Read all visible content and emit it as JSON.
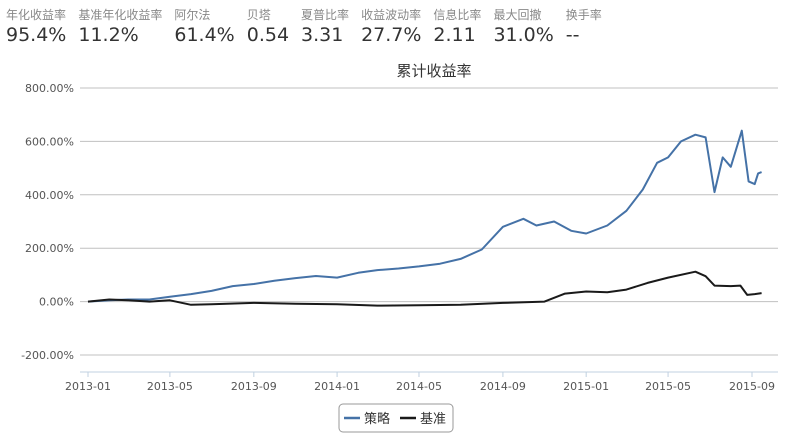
{
  "stats": [
    {
      "label": "年化收益率",
      "value": "95.4%"
    },
    {
      "label": "基准年化收益率",
      "value": "11.2%"
    },
    {
      "label": "阿尔法",
      "value": "61.4%"
    },
    {
      "label": "贝塔",
      "value": "0.54"
    },
    {
      "label": "夏普比率",
      "value": "3.31"
    },
    {
      "label": "收益波动率",
      "value": "27.7%"
    },
    {
      "label": "信息比率",
      "value": "2.11"
    },
    {
      "label": "最大回撤",
      "value": "31.0%"
    },
    {
      "label": "换手率",
      "value": "--"
    }
  ],
  "chart_data": {
    "type": "line",
    "title": "累计收益率",
    "ylim": [
      -200,
      800
    ],
    "yticks": [
      -200,
      0,
      200,
      400,
      600,
      800
    ],
    "ytick_labels": [
      "-200.00%",
      "0.00%",
      "200.00%",
      "400.00%",
      "600.00%",
      "800.00%"
    ],
    "xticks": [
      "2013-01",
      "2013-05",
      "2013-09",
      "2014-01",
      "2014-05",
      "2014-09",
      "2015-01",
      "2015-05",
      "2015-09"
    ],
    "grid": true,
    "legend": "bottom",
    "series": [
      {
        "name": "策略",
        "color": "#4572a7",
        "points": [
          [
            "2013-01-01",
            0
          ],
          [
            "2013-02-01",
            5
          ],
          [
            "2013-03-01",
            8
          ],
          [
            "2013-04-01",
            8
          ],
          [
            "2013-05-01",
            18
          ],
          [
            "2013-06-01",
            28
          ],
          [
            "2013-07-01",
            40
          ],
          [
            "2013-08-01",
            58
          ],
          [
            "2013-09-01",
            66
          ],
          [
            "2013-10-01",
            78
          ],
          [
            "2013-11-01",
            88
          ],
          [
            "2013-12-01",
            96
          ],
          [
            "2014-01-01",
            90
          ],
          [
            "2014-02-01",
            108
          ],
          [
            "2014-03-01",
            118
          ],
          [
            "2014-04-01",
            124
          ],
          [
            "2014-05-01",
            132
          ],
          [
            "2014-06-01",
            142
          ],
          [
            "2014-07-01",
            160
          ],
          [
            "2014-08-01",
            195
          ],
          [
            "2014-09-01",
            280
          ],
          [
            "2014-10-01",
            310
          ],
          [
            "2014-10-20",
            285
          ],
          [
            "2014-11-15",
            300
          ],
          [
            "2014-12-10",
            265
          ],
          [
            "2015-01-01",
            255
          ],
          [
            "2015-02-01",
            285
          ],
          [
            "2015-03-01",
            340
          ],
          [
            "2015-03-25",
            420
          ],
          [
            "2015-04-15",
            520
          ],
          [
            "2015-05-01",
            540
          ],
          [
            "2015-05-20",
            600
          ],
          [
            "2015-06-10",
            625
          ],
          [
            "2015-06-25",
            615
          ],
          [
            "2015-07-08",
            410
          ],
          [
            "2015-07-20",
            540
          ],
          [
            "2015-08-01",
            505
          ],
          [
            "2015-08-17",
            640
          ],
          [
            "2015-08-27",
            450
          ],
          [
            "2015-09-05",
            440
          ],
          [
            "2015-09-10",
            480
          ],
          [
            "2015-09-15",
            485
          ]
        ]
      },
      {
        "name": "基准",
        "color": "#1a1a1a",
        "points": [
          [
            "2013-01-01",
            0
          ],
          [
            "2013-02-01",
            8
          ],
          [
            "2013-03-01",
            5
          ],
          [
            "2013-04-01",
            0
          ],
          [
            "2013-05-01",
            5
          ],
          [
            "2013-06-01",
            -12
          ],
          [
            "2013-07-01",
            -10
          ],
          [
            "2013-09-01",
            -5
          ],
          [
            "2013-11-01",
            -8
          ],
          [
            "2014-01-01",
            -10
          ],
          [
            "2014-03-01",
            -15
          ],
          [
            "2014-05-01",
            -14
          ],
          [
            "2014-07-01",
            -12
          ],
          [
            "2014-09-01",
            -5
          ],
          [
            "2014-11-01",
            0
          ],
          [
            "2014-12-01",
            30
          ],
          [
            "2015-01-01",
            38
          ],
          [
            "2015-02-01",
            35
          ],
          [
            "2015-03-01",
            45
          ],
          [
            "2015-04-01",
            70
          ],
          [
            "2015-05-01",
            90
          ],
          [
            "2015-06-10",
            112
          ],
          [
            "2015-06-25",
            95
          ],
          [
            "2015-07-08",
            60
          ],
          [
            "2015-08-01",
            58
          ],
          [
            "2015-08-15",
            60
          ],
          [
            "2015-08-25",
            25
          ],
          [
            "2015-09-05",
            28
          ],
          [
            "2015-09-15",
            32
          ]
        ]
      }
    ]
  }
}
